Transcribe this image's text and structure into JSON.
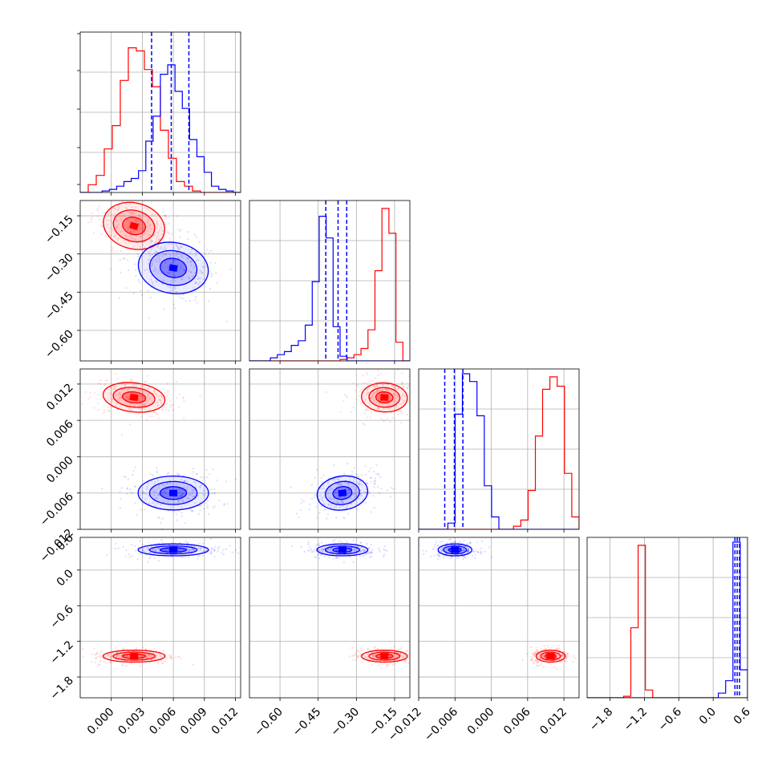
{
  "chart_data": {
    "type": "corner",
    "title": "",
    "grid": true,
    "colors": {
      "set_a": "#ff0000",
      "set_b": "#0000ff"
    },
    "parameters": [
      {
        "index": 0,
        "xlim": [
          -0.003,
          0.0125
        ],
        "ylim": [
          0,
          1
        ],
        "x_ticks": [
          "0.000",
          "0.003",
          "0.006",
          "0.009",
          "0.012"
        ],
        "tick_values": [
          0,
          0.003,
          0.006,
          0.009,
          0.012
        ]
      },
      {
        "index": 1,
        "xlim": [
          -0.72,
          -0.09
        ],
        "ylim": [
          -0.72,
          -0.09
        ],
        "x_ticks": [
          "−0.60",
          "−0.45",
          "−0.30",
          "−0.15"
        ],
        "y_ticks": [
          "−0.15",
          "−0.30",
          "−0.45",
          "−0.60"
        ],
        "tick_values": [
          -0.6,
          -0.45,
          -0.3,
          -0.15
        ]
      },
      {
        "index": 2,
        "xlim": [
          -0.012,
          0.0145
        ],
        "ylim": [
          -0.012,
          0.0145
        ],
        "x_ticks": [
          "−0.012",
          "−0.006",
          "0.000",
          "0.006",
          "0.012"
        ],
        "y_ticks": [
          "0.012",
          "0.006",
          "0.000",
          "−0.006",
          "−0.012"
        ],
        "tick_values": [
          -0.012,
          -0.006,
          0,
          0.006,
          0.012
        ]
      },
      {
        "index": 3,
        "xlim": [
          -2.2,
          0.6
        ],
        "ylim": [
          -2.15,
          0.55
        ],
        "x_ticks": [
          "−1.8",
          "−1.2",
          "−0.6",
          "0.0",
          "0.6"
        ],
        "y_ticks": [
          "0.6",
          "0.0",
          "−0.6",
          "−1.2",
          "−1.8"
        ],
        "tick_values": [
          -1.8,
          -1.2,
          -0.6,
          0,
          0.6
        ]
      }
    ],
    "series": [
      {
        "color": "#ff0000",
        "hist_1d": [
          [
            0,
            0.05,
            0.11,
            0.28,
            0.43,
            0.72,
            0.93,
            0.91,
            0.79,
            0.68,
            0.4,
            0.22,
            0.07,
            0.04,
            0.01,
            0,
            0,
            0,
            0,
            0
          ],
          [
            0,
            0,
            0,
            0,
            0,
            0,
            0,
            0,
            0,
            0,
            0,
            0,
            0,
            0.01,
            0.02,
            0.04,
            0.08,
            0.2,
            0.58,
            0.98,
            0.82,
            0.12,
            0
          ],
          [
            0,
            0,
            0,
            0,
            0,
            0,
            0,
            0,
            0,
            0,
            0,
            0,
            0,
            0.02,
            0.06,
            0.25,
            0.6,
            0.9,
            0.98,
            0.92,
            0.36,
            0.08
          ],
          [
            0,
            0,
            0,
            0,
            0,
            0.01,
            0.45,
            0.98,
            0.05,
            0,
            0,
            0,
            0,
            0,
            0,
            0,
            0,
            0,
            0,
            0,
            0,
            0
          ]
        ],
        "centers_2d": [
          0.0022,
          -0.19,
          0.0098,
          -1.45
        ],
        "spread": [
          0.0015,
          0.045,
          0.0012,
          0.05
        ],
        "correlations": {
          "1,0": -0.45,
          "2,0": -0.2,
          "2,1": -0.1,
          "3,0": 0,
          "3,1": 0,
          "3,2": 0
        }
      },
      {
        "color": "#0000ff",
        "hist_1d": [
          [
            0,
            0,
            0,
            0.01,
            0.02,
            0.04,
            0.07,
            0.09,
            0.14,
            0.33,
            0.49,
            0.76,
            0.82,
            0.65,
            0.54,
            0.34,
            0.23,
            0.13,
            0.04,
            0.02,
            0.01,
            0
          ],
          [
            0,
            0,
            0,
            0.02,
            0.04,
            0.06,
            0.1,
            0.13,
            0.23,
            0.51,
            0.93,
            0.79,
            0.22,
            0.03,
            0,
            0,
            0,
            0,
            0,
            0,
            0,
            0,
            0
          ],
          [
            0,
            0,
            0,
            0,
            0.04,
            0.74,
            1.0,
            0.95,
            0.73,
            0.28,
            0.08,
            0,
            0,
            0,
            0,
            0,
            0,
            0,
            0,
            0,
            0,
            0
          ],
          [
            0,
            0,
            0,
            0,
            0,
            0,
            0,
            0,
            0,
            0,
            0,
            0,
            0,
            0,
            0,
            0,
            0,
            0,
            0.03,
            0.11,
            1.0,
            0.18
          ]
        ],
        "centers_2d": [
          0.006,
          -0.355,
          -0.006,
          0.34
        ],
        "spread": [
          0.0017,
          0.05,
          0.0014,
          0.05
        ],
        "correlations": {
          "1,0": -0.3,
          "2,0": 0,
          "2,1": 0.25,
          "3,0": 0,
          "3,1": 0,
          "3,2": 0
        }
      }
    ],
    "quantile_lines": [
      [
        0.0039,
        0.0058,
        0.0075
      ],
      [
        -0.42,
        -0.372,
        -0.338
      ],
      [
        -0.0077,
        -0.0061,
        -0.0047
      ],
      [
        0.38,
        0.42,
        0.46
      ]
    ]
  }
}
